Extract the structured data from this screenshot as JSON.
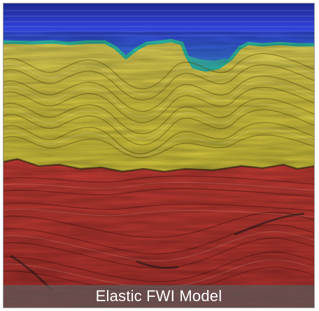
{
  "figure": {
    "caption": "Elastic FWI Model",
    "colors": {
      "water": "#2f3fd6",
      "water_bottom": "#3a8fd8",
      "sea_floor": "#2fbfa8",
      "sediment": "#d9cc44",
      "salt_body": "#c9c33a",
      "basement": "#c83a33",
      "deep": "#8a2a28"
    }
  }
}
